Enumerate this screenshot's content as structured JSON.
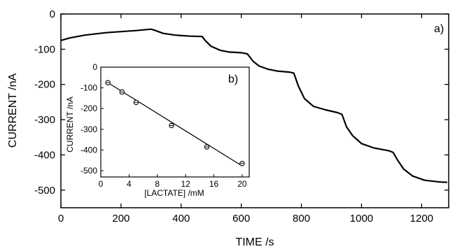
{
  "chart_data": [
    {
      "type": "line",
      "panel_label": "a)",
      "xlabel": "TIME /s",
      "ylabel": "CURRENT /nA",
      "xlim": [
        0,
        1290
      ],
      "ylim": [
        -550,
        0
      ],
      "xticks": [
        0,
        200,
        400,
        600,
        800,
        1000,
        1200
      ],
      "yticks": [
        0,
        -100,
        -200,
        -300,
        -400,
        -500
      ],
      "x": [
        0,
        30,
        80,
        150,
        200,
        250,
        300,
        315,
        340,
        380,
        430,
        470,
        480,
        500,
        530,
        560,
        600,
        620,
        640,
        660,
        690,
        720,
        760,
        775,
        790,
        810,
        840,
        880,
        920,
        935,
        950,
        970,
        1000,
        1040,
        1090,
        1105,
        1120,
        1140,
        1170,
        1210,
        1260,
        1285
      ],
      "y": [
        -75,
        -68,
        -60,
        -53,
        -50,
        -47,
        -43,
        -47,
        -55,
        -60,
        -63,
        -64,
        -75,
        -92,
        -103,
        -108,
        -110,
        -113,
        -135,
        -148,
        -157,
        -162,
        -165,
        -168,
        -205,
        -240,
        -262,
        -272,
        -280,
        -285,
        -320,
        -345,
        -368,
        -380,
        -388,
        -393,
        -415,
        -440,
        -460,
        -472,
        -477,
        -478
      ]
    },
    {
      "type": "scatter",
      "panel_label": "b)",
      "xlabel": "[LACTATE] /mM",
      "ylabel": "CURRENT /nA",
      "xlim": [
        0,
        21
      ],
      "ylim": [
        -530,
        0
      ],
      "xticks": [
        0,
        4,
        8,
        12,
        16,
        20
      ],
      "yticks": [
        0,
        -100,
        -200,
        -300,
        -400,
        -500
      ],
      "x": [
        1,
        3,
        5,
        10,
        15,
        20
      ],
      "y": [
        -75,
        -120,
        -170,
        -282,
        -385,
        -465
      ],
      "fit_line": {
        "x": [
          1,
          20
        ],
        "y": [
          -75,
          -477
        ]
      }
    }
  ]
}
